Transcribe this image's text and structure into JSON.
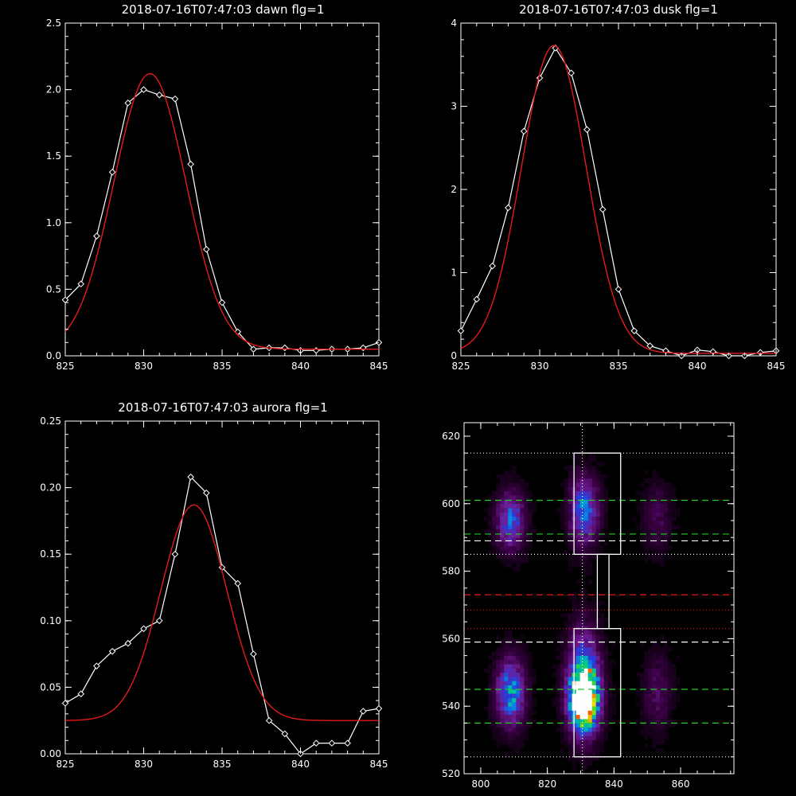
{
  "colors": {
    "background": "#000000",
    "axes": "#ffffff",
    "data_line": "#ffffff",
    "fit_line": "#e41a1c",
    "green_dash": "#22cc22",
    "red_dash": "#e41a1c",
    "white_dash": "#ffffff"
  },
  "chart_data": [
    {
      "type": "line",
      "title": "2018-07-16T07:47:03 dawn flg=1",
      "xlim": [
        825,
        845
      ],
      "ylim": [
        0,
        2.5
      ],
      "xticks": [
        "825",
        "830",
        "835",
        "840",
        "845"
      ],
      "yticks": [
        "0.0",
        "0.5",
        "1.0",
        "1.5",
        "2.0",
        "2.5"
      ],
      "series": [
        {
          "style": "data",
          "marker": "diamond",
          "x": [
            825,
            826,
            827,
            828,
            829,
            830,
            831,
            832,
            833,
            834,
            835,
            836,
            837,
            838,
            839,
            840,
            841,
            842,
            843,
            844,
            845
          ],
          "y": [
            0.42,
            0.54,
            0.9,
            1.38,
            1.9,
            2.0,
            1.96,
            1.93,
            1.44,
            0.8,
            0.4,
            0.18,
            0.05,
            0.06,
            0.06,
            0.04,
            0.04,
            0.05,
            0.05,
            0.06,
            0.1
          ]
        },
        {
          "style": "fit",
          "model": {
            "amp": 2.07,
            "center": 830.4,
            "sigma": 2.3,
            "offset": 0.05
          }
        }
      ]
    },
    {
      "type": "line",
      "title": "2018-07-16T07:47:03 dusk flg=1",
      "xlim": [
        825,
        845
      ],
      "ylim": [
        0,
        4
      ],
      "xticks": [
        "825",
        "830",
        "835",
        "840",
        "845"
      ],
      "yticks": [
        "0",
        "1",
        "2",
        "3",
        "4"
      ],
      "series": [
        {
          "style": "data",
          "marker": "diamond",
          "x": [
            825,
            826,
            827,
            828,
            829,
            830,
            831,
            832,
            833,
            834,
            835,
            836,
            837,
            838,
            839,
            840,
            841,
            842,
            843,
            844,
            845
          ],
          "y": [
            0.3,
            0.68,
            1.08,
            1.78,
            2.7,
            3.34,
            3.7,
            3.4,
            2.72,
            1.76,
            0.8,
            0.3,
            0.12,
            0.06,
            0.0,
            0.07,
            0.05,
            0.0,
            0.0,
            0.04,
            0.06
          ]
        },
        {
          "style": "fit",
          "model": {
            "amp": 3.7,
            "center": 830.9,
            "sigma": 2.05,
            "offset": 0.03
          }
        }
      ]
    },
    {
      "type": "line",
      "title": "2018-07-16T07:47:03 aurora flg=1",
      "xlim": [
        825,
        845
      ],
      "ylim": [
        0,
        0.25
      ],
      "xticks": [
        "825",
        "830",
        "835",
        "840",
        "845"
      ],
      "yticks": [
        "0.00",
        "0.05",
        "0.10",
        "0.15",
        "0.20",
        "0.25"
      ],
      "series": [
        {
          "style": "data",
          "marker": "diamond",
          "x": [
            825,
            826,
            827,
            828,
            829,
            830,
            831,
            832,
            833,
            834,
            835,
            836,
            837,
            838,
            839,
            840,
            841,
            842,
            843,
            844,
            845
          ],
          "y": [
            0.038,
            0.045,
            0.066,
            0.077,
            0.083,
            0.094,
            0.1,
            0.15,
            0.208,
            0.196,
            0.14,
            0.128,
            0.075,
            0.025,
            0.015,
            0.0,
            0.008,
            0.008,
            0.008,
            0.032,
            0.034
          ]
        },
        {
          "style": "fit",
          "model": {
            "amp": 0.162,
            "center": 833.2,
            "sigma": 2.1,
            "offset": 0.025
          }
        }
      ]
    },
    {
      "type": "heatmap",
      "title": "",
      "xlim": [
        795,
        876
      ],
      "ylim": [
        520,
        624
      ],
      "xticks": [
        "800",
        "820",
        "840",
        "860"
      ],
      "yticks": [
        "520",
        "540",
        "560",
        "580",
        "600",
        "620"
      ],
      "blobs": [
        {
          "x": 809,
          "y": 544,
          "sx": 3.0,
          "sy": 7.0,
          "amp": 0.62
        },
        {
          "x": 809,
          "y": 595,
          "sx": 3.0,
          "sy": 6.0,
          "amp": 0.5
        },
        {
          "x": 831,
          "y": 542,
          "sx": 3.0,
          "sy": 6.0,
          "amp": 1.0
        },
        {
          "x": 831,
          "y": 548,
          "sx": 3.4,
          "sy": 11.0,
          "amp": 0.55
        },
        {
          "x": 831,
          "y": 598,
          "sx": 3.0,
          "sy": 7.0,
          "amp": 0.55
        },
        {
          "x": 853,
          "y": 544,
          "sx": 3.0,
          "sy": 8.0,
          "amp": 0.2
        },
        {
          "x": 853,
          "y": 596,
          "sx": 3.0,
          "sy": 7.0,
          "amp": 0.18
        }
      ],
      "hlines": [
        {
          "y": 615,
          "color": "white",
          "style": "dotted"
        },
        {
          "y": 601,
          "color": "green",
          "style": "dashed"
        },
        {
          "y": 591,
          "color": "green",
          "style": "dashed"
        },
        {
          "y": 589,
          "color": "white",
          "style": "dashed"
        },
        {
          "y": 585,
          "color": "white",
          "style": "dotted"
        },
        {
          "y": 573,
          "color": "red",
          "style": "dashed"
        },
        {
          "y": 568.5,
          "color": "red",
          "style": "dotted"
        },
        {
          "y": 563,
          "color": "red",
          "style": "dotted"
        },
        {
          "y": 559,
          "color": "white",
          "style": "dashed"
        },
        {
          "y": 545,
          "color": "green",
          "style": "dashed"
        },
        {
          "y": 535,
          "color": "green",
          "style": "dashed"
        },
        {
          "y": 525,
          "color": "white",
          "style": "dotted"
        }
      ],
      "vline": {
        "x": 830.5,
        "color": "white",
        "style": "dotted"
      },
      "boxes": [
        {
          "x0": 828,
          "x1": 842,
          "y0": 585,
          "y1": 615
        },
        {
          "x0": 828,
          "x1": 842,
          "y0": 525,
          "y1": 563
        },
        {
          "x0": 835,
          "x1": 838.5,
          "y0": 563,
          "y1": 585
        }
      ]
    }
  ]
}
